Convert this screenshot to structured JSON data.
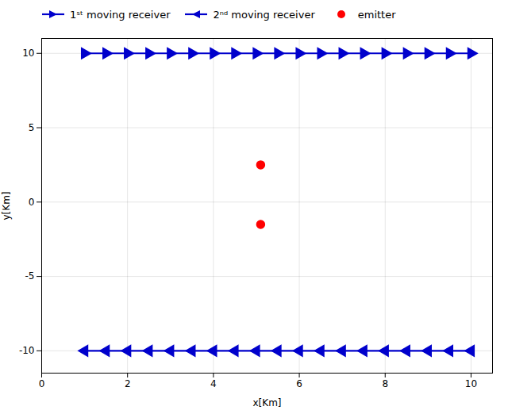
{
  "chart_data": {
    "type": "scatter",
    "xlabel": "x[Km]",
    "ylabel": "y[Km]",
    "xlim": [
      0,
      10.5
    ],
    "ylim": [
      -11.5,
      11.0
    ],
    "xticks": [
      0,
      2,
      4,
      6,
      8,
      10
    ],
    "yticks": [
      -10,
      -5,
      0,
      5,
      10
    ],
    "grid": true,
    "legend": "upper left",
    "series": [
      {
        "name": "1ˢᵗ moving receiver",
        "type": "line",
        "marker": "triangle-right",
        "color": "#0000CC",
        "x": [
          1.0,
          1.5,
          2.0,
          2.5,
          3.0,
          3.5,
          4.0,
          4.5,
          5.0,
          5.5,
          6.0,
          6.5,
          7.0,
          7.5,
          8.0,
          8.5,
          9.0,
          9.5,
          10.0
        ],
        "values": [
          10,
          10,
          10,
          10,
          10,
          10,
          10,
          10,
          10,
          10,
          10,
          10,
          10,
          10,
          10,
          10,
          10,
          10,
          10
        ]
      },
      {
        "name": "2ⁿᵈ moving receiver",
        "type": "line",
        "marker": "triangle-left",
        "color": "#0000CC",
        "x": [
          1.0,
          1.5,
          2.0,
          2.5,
          3.0,
          3.5,
          4.0,
          4.5,
          5.0,
          5.5,
          6.0,
          6.5,
          7.0,
          7.5,
          8.0,
          8.5,
          9.0,
          9.5,
          10.0
        ],
        "values": [
          -10,
          -10,
          -10,
          -10,
          -10,
          -10,
          -10,
          -10,
          -10,
          -10,
          -10,
          -10,
          -10,
          -10,
          -10,
          -10,
          -10,
          -10,
          -10
        ]
      },
      {
        "name": "emitter",
        "type": "scatter",
        "marker": "circle",
        "color": "#FF0000",
        "x": [
          5.1,
          5.1
        ],
        "values": [
          2.5,
          -1.5
        ]
      }
    ]
  }
}
